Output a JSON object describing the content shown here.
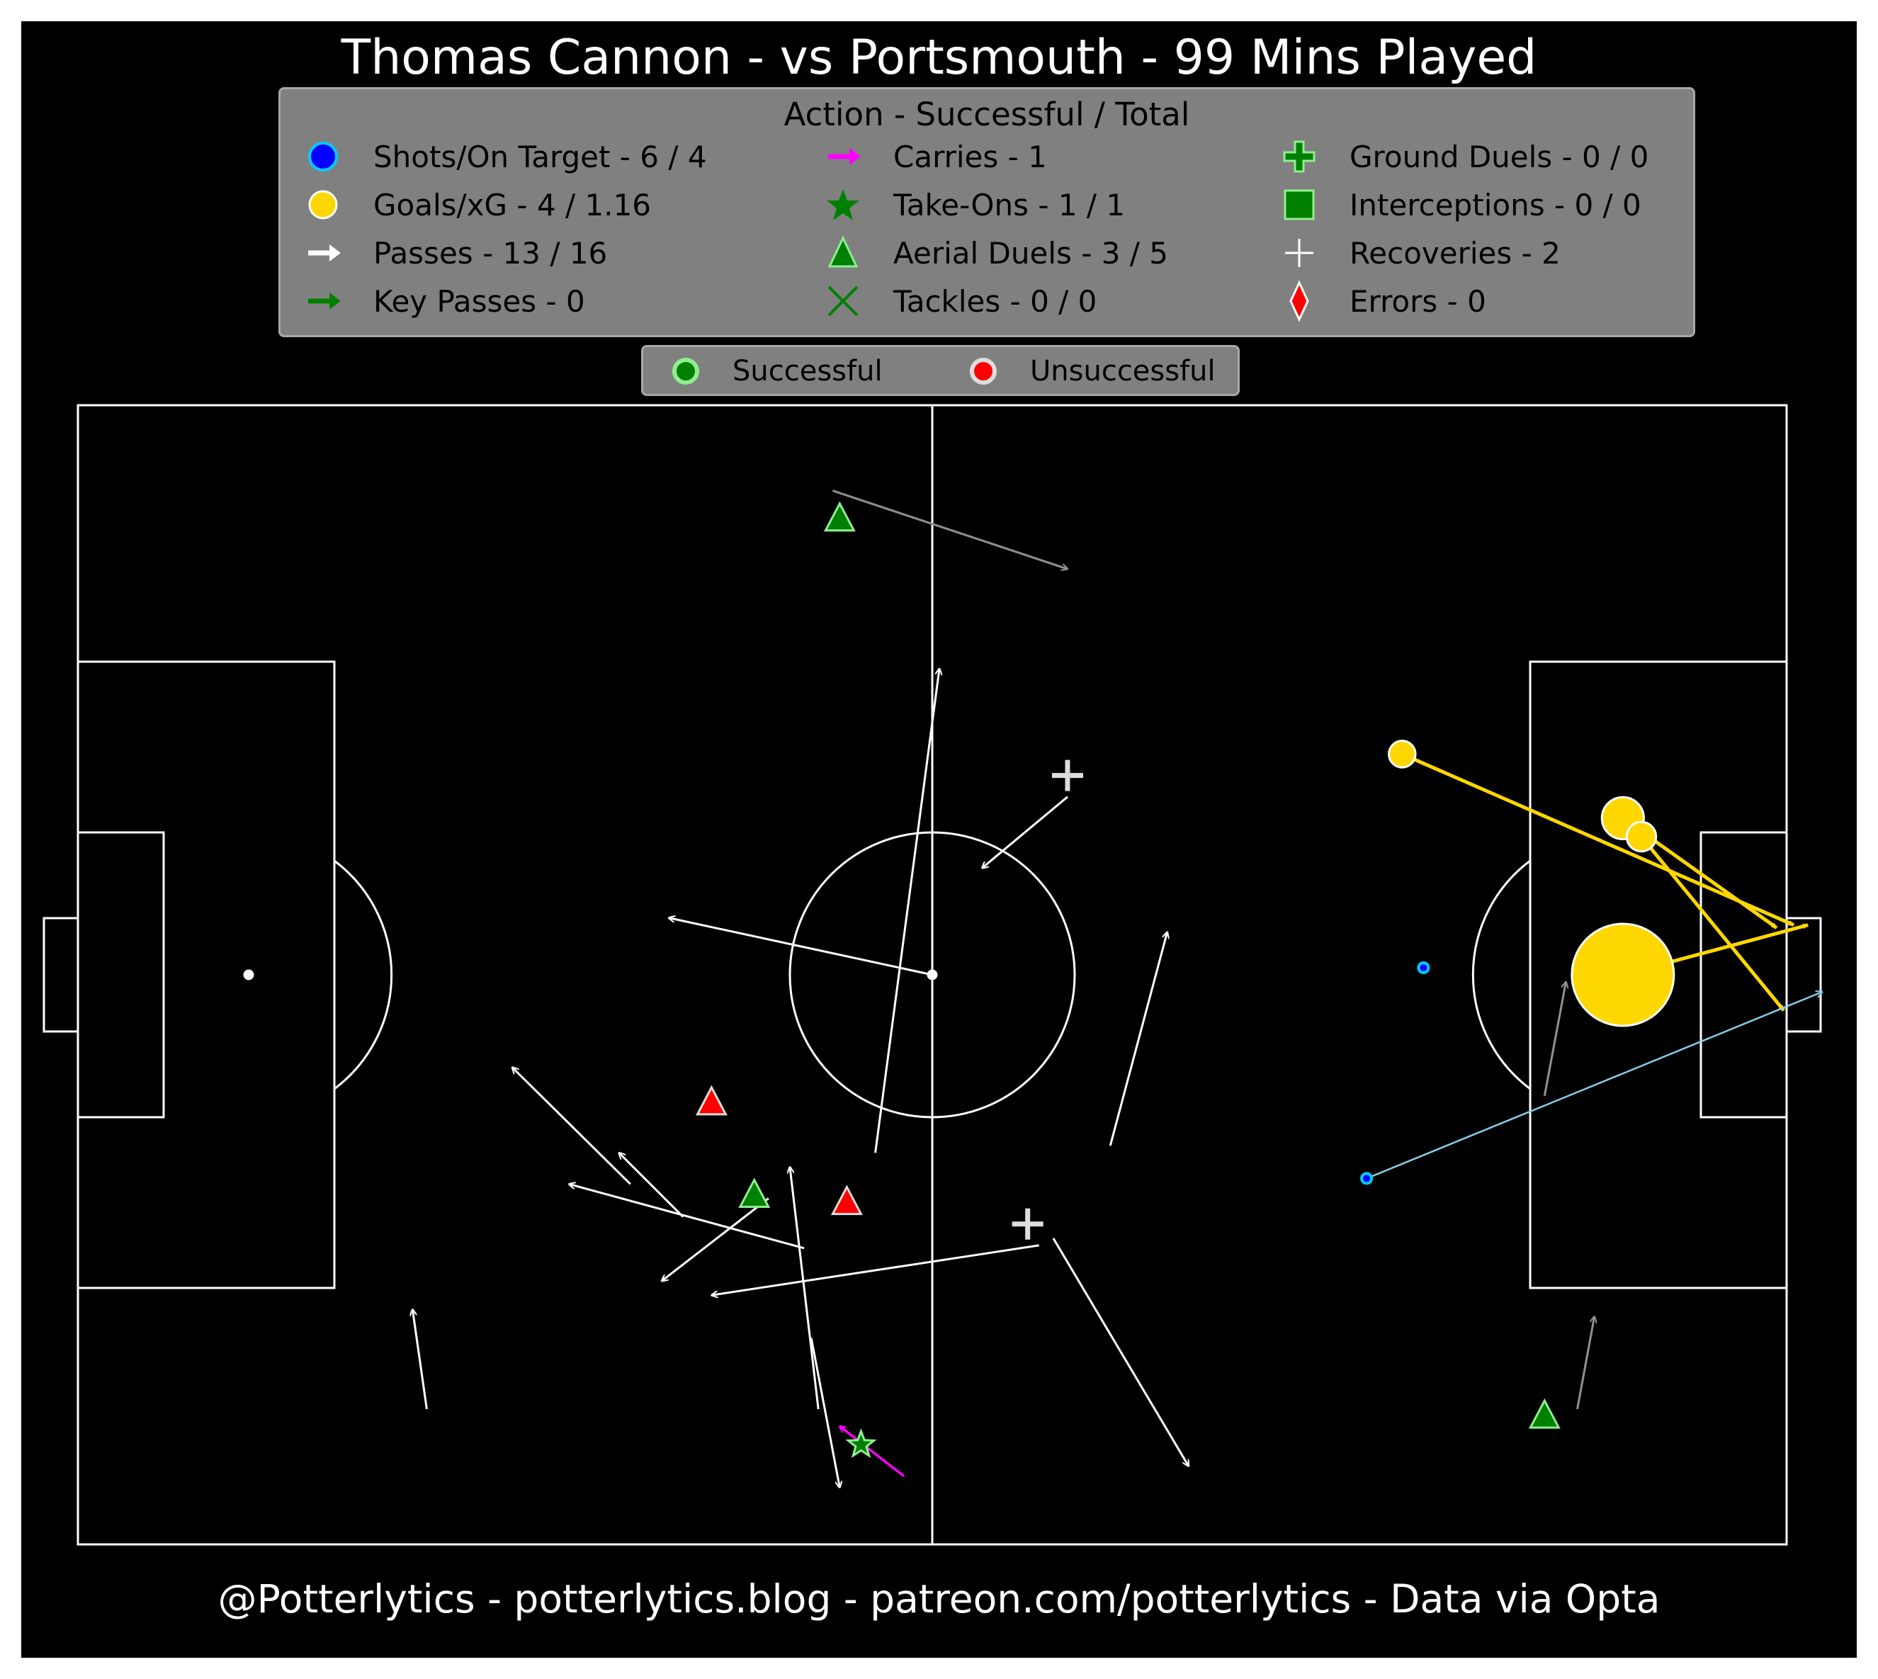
{
  "title": "Thomas Cannon - vs Portsmouth - 99 Mins Played",
  "footer": "@Potterlytics - potterlytics.blog - patreon.com/potterlytics - Data via Opta",
  "legend": {
    "title": "Action - Successful / Total",
    "items": [
      {
        "label": "Shots/On Target - 6 / 4",
        "icon": "blue-circle-icon",
        "color": "#0000ff"
      },
      {
        "label": "Goals/xG - 4 / 1.16",
        "icon": "gold-circle-icon",
        "color": "#ffd700"
      },
      {
        "label": "Passes - 13 / 16",
        "icon": "white-arrow-icon",
        "color": "#ffffff"
      },
      {
        "label": "Key Passes - 0",
        "icon": "green-arrow-icon",
        "color": "#008000"
      },
      {
        "label": "Carries - 1",
        "icon": "magenta-arrow-icon",
        "color": "#ff00ff"
      },
      {
        "label": "Take-Ons - 1 / 1",
        "icon": "green-star-icon",
        "color": "#008000"
      },
      {
        "label": "Aerial Duels - 3 / 5",
        "icon": "green-triangle-icon",
        "color": "#008000"
      },
      {
        "label": "Tackles - 0 / 0",
        "icon": "green-x-icon",
        "color": "#008000"
      },
      {
        "label": "Ground Duels - 0 / 0",
        "icon": "green-plus-icon",
        "color": "#008000"
      },
      {
        "label": "Interceptions - 0 / 0",
        "icon": "green-square-icon",
        "color": "#008000"
      },
      {
        "label": "Recoveries - 2",
        "icon": "white-plus-icon",
        "color": "#ffffff"
      },
      {
        "label": "Errors - 0",
        "icon": "red-diamond-icon",
        "color": "#ff0000"
      }
    ]
  },
  "status_legend": {
    "successful": "Successful",
    "unsuccessful": "Unsuccessful",
    "successful_color": "#008000",
    "unsuccessful_color": "#ff0000"
  },
  "chart_data": {
    "type": "scatter",
    "pitch": {
      "length": 120,
      "width": 80,
      "attacking_direction": "left-to-right"
    },
    "passes": [
      {
        "from": [
          60.0,
          40.0
        ],
        "to": [
          41.5,
          44.0
        ],
        "outcome": "successful"
      },
      {
        "from": [
          56.0,
          27.5
        ],
        "to": [
          60.5,
          61.5
        ],
        "outcome": "successful"
      },
      {
        "from": [
          69.5,
          52.5
        ],
        "to": [
          63.5,
          47.5
        ],
        "outcome": "successful"
      },
      {
        "from": [
          72.5,
          28.0
        ],
        "to": [
          76.5,
          43.0
        ],
        "outcome": "successful"
      },
      {
        "from": [
          38.8,
          25.3
        ],
        "to": [
          30.5,
          33.5
        ],
        "outcome": "successful"
      },
      {
        "from": [
          42.5,
          23.0
        ],
        "to": [
          38.0,
          27.5
        ],
        "outcome": "successful"
      },
      {
        "from": [
          51.0,
          20.8
        ],
        "to": [
          34.5,
          25.3
        ],
        "outcome": "successful"
      },
      {
        "from": [
          48.5,
          24.3
        ],
        "to": [
          41.0,
          18.5
        ],
        "outcome": "successful"
      },
      {
        "from": [
          67.5,
          21.0
        ],
        "to": [
          44.5,
          17.5
        ],
        "outcome": "successful"
      },
      {
        "from": [
          52.0,
          9.5
        ],
        "to": [
          50.0,
          26.5
        ],
        "outcome": "successful"
      },
      {
        "from": [
          24.5,
          9.5
        ],
        "to": [
          23.5,
          16.5
        ],
        "outcome": "successful"
      },
      {
        "from": [
          68.5,
          21.5
        ],
        "to": [
          78.0,
          5.5
        ],
        "outcome": "successful"
      },
      {
        "from": [
          51.5,
          14.5
        ],
        "to": [
          53.5,
          4.0
        ],
        "outcome": "successful"
      },
      {
        "from": [
          53.0,
          74.0
        ],
        "to": [
          69.5,
          68.5
        ],
        "outcome": "unsuccessful"
      },
      {
        "from": [
          103.0,
          31.5
        ],
        "to": [
          104.5,
          39.5
        ],
        "outcome": "unsuccessful"
      },
      {
        "from": [
          105.3,
          9.5
        ],
        "to": [
          106.5,
          16.0
        ],
        "outcome": "unsuccessful"
      }
    ],
    "carries": [
      {
        "from": [
          58.0,
          4.8
        ],
        "to": [
          53.5,
          8.3
        ]
      }
    ],
    "shots": [
      {
        "x": 93.0,
        "y": 55.5,
        "result": "goal",
        "xG": 0.02
      },
      {
        "x": 108.5,
        "y": 51.0,
        "result": "goal",
        "xG": 0.1
      },
      {
        "x": 109.8,
        "y": 49.7,
        "result": "goal",
        "xG": 0.03
      },
      {
        "x": 108.5,
        "y": 40.0,
        "result": "goal",
        "xG": 1.0
      },
      {
        "x": 94.5,
        "y": 40.5,
        "result": "saved",
        "xG": 0.01
      },
      {
        "x": 90.5,
        "y": 25.7,
        "result": "saved",
        "xG": 0.01
      }
    ],
    "shot_paths": [
      {
        "from": [
          93.0,
          55.5
        ],
        "to": [
          120.5,
          43.5
        ],
        "color": "#ffd700"
      },
      {
        "from": [
          109.8,
          49.7
        ],
        "to": [
          119.8,
          37.5
        ],
        "color": "#ffd700"
      },
      {
        "from": [
          108.5,
          51.0
        ],
        "to": [
          119.3,
          43.3
        ],
        "color": "#ffd700"
      },
      {
        "from": [
          108.5,
          40.0
        ],
        "to": [
          121.5,
          43.5
        ],
        "color": "#ffd700"
      },
      {
        "from": [
          90.5,
          25.7
        ],
        "to": [
          122.5,
          38.8
        ],
        "color": "#87ceeb"
      }
    ],
    "take_ons": [
      {
        "x": 55.0,
        "y": 7.0,
        "outcome": "successful"
      }
    ],
    "aerial_duels": [
      {
        "x": 53.5,
        "y": 72.0,
        "outcome": "successful"
      },
      {
        "x": 47.5,
        "y": 24.5,
        "outcome": "successful"
      },
      {
        "x": 103.0,
        "y": 9.0,
        "outcome": "successful"
      },
      {
        "x": 44.5,
        "y": 31.0,
        "outcome": "unsuccessful"
      },
      {
        "x": 54.0,
        "y": 24.0,
        "outcome": "unsuccessful"
      }
    ],
    "recoveries": [
      {
        "x": 69.5,
        "y": 54.0
      },
      {
        "x": 66.7,
        "y": 22.5
      }
    ]
  }
}
